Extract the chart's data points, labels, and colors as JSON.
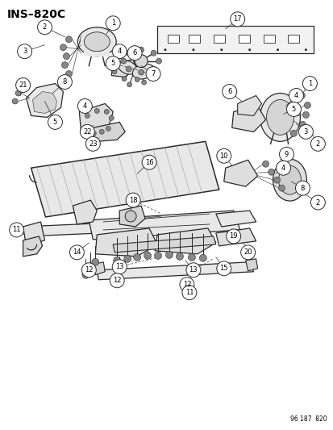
{
  "title": "INS–820C",
  "diagram_id": "96 187  820",
  "bg_color": "#ffffff",
  "line_color": "#2a2a2a",
  "fig_width": 4.14,
  "fig_height": 5.33,
  "dpi": 100
}
